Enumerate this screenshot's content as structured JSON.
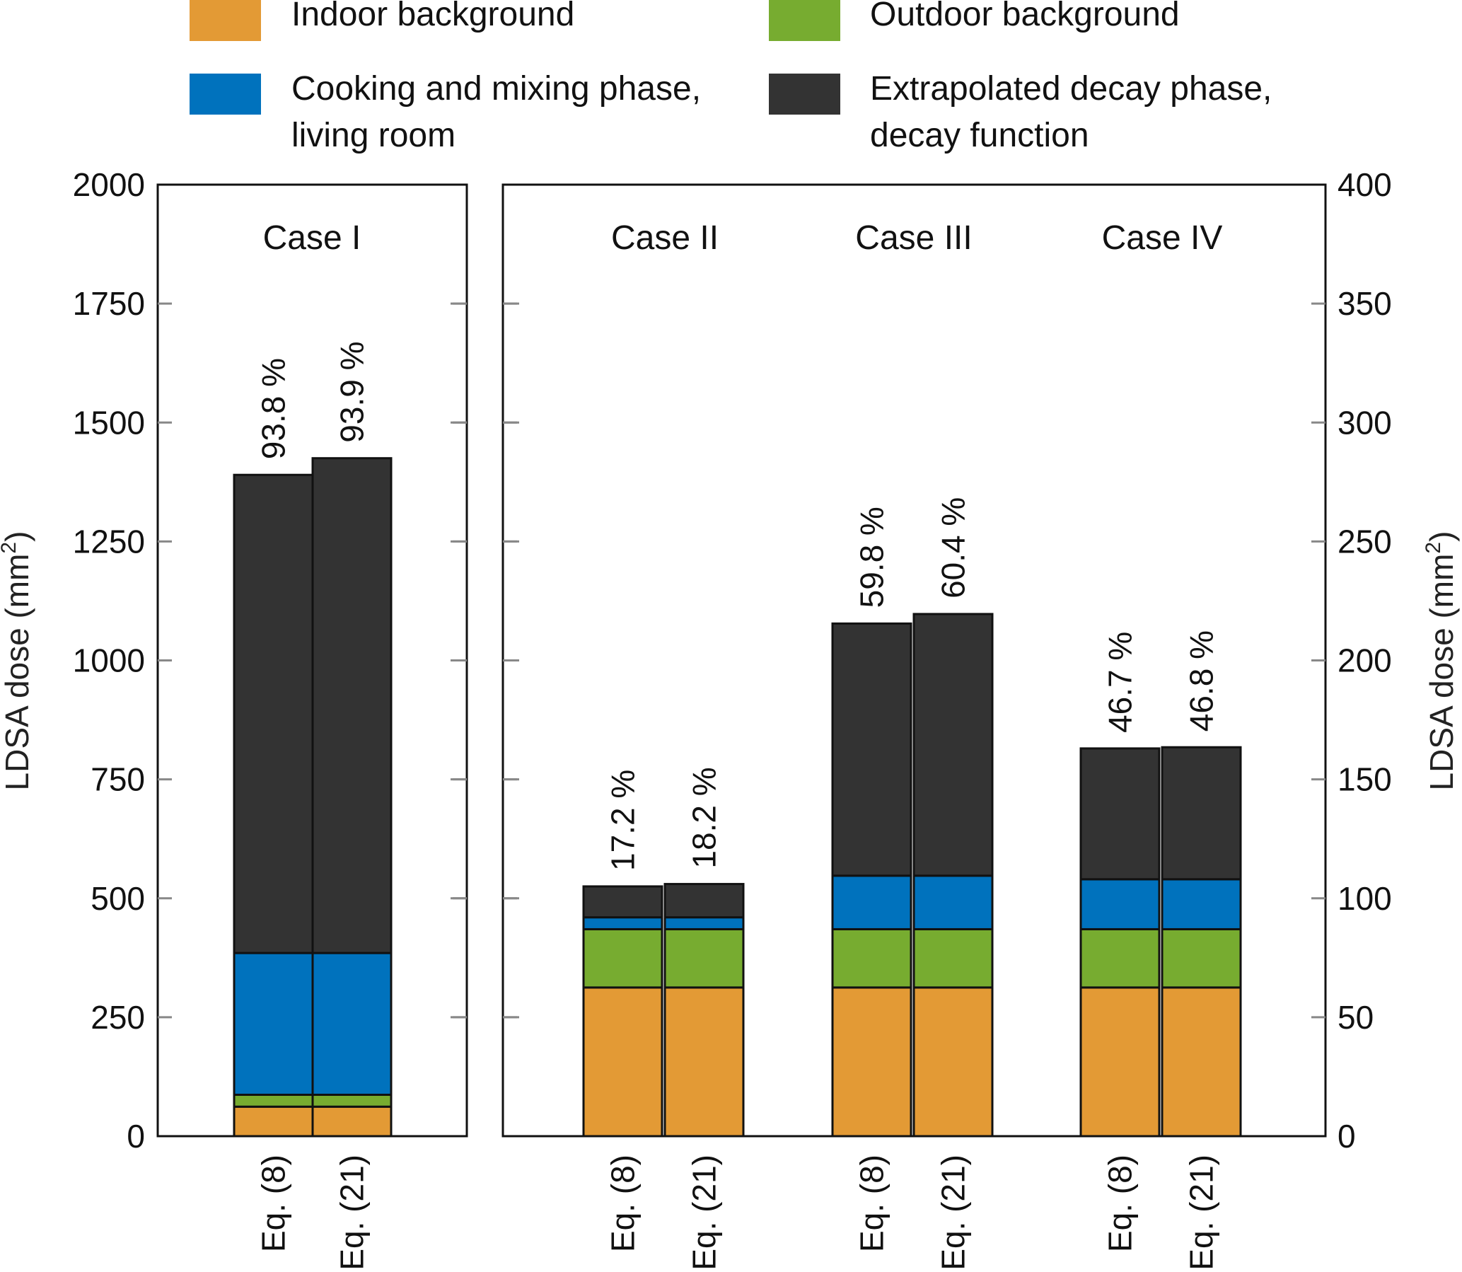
{
  "legend": [
    {
      "key": "indoor",
      "label_lines": [
        "Indoor background"
      ],
      "color": "#E39A35"
    },
    {
      "key": "outdoor",
      "label_lines": [
        "Outdoor background"
      ],
      "color": "#77AC30"
    },
    {
      "key": "cooking",
      "label_lines": [
        "Cooking and mixing phase,",
        "living room"
      ],
      "color": "#0072BD"
    },
    {
      "key": "decay",
      "label_lines": [
        "Extrapolated decay phase,",
        "decay function"
      ],
      "color": "#333333"
    }
  ],
  "chart_data": [
    {
      "type": "bar",
      "stacked": true,
      "panel": "left",
      "case": "Case I",
      "categories": [
        "Eq. (8)",
        "Eq. (21)"
      ],
      "ylabel": "LDSA dose (mm²)",
      "ylabel_parts": {
        "base": "LDSA dose (mm",
        "sup": "2",
        "end": ")"
      },
      "ylim": [
        0,
        2000
      ],
      "yticks": [
        "0",
        "250",
        "500",
        "750",
        "1000",
        "1250",
        "1500",
        "1750",
        "2000"
      ],
      "series": [
        {
          "name": "Indoor background",
          "values": [
            62,
            62
          ]
        },
        {
          "name": "Outdoor background",
          "values": [
            25,
            25
          ]
        },
        {
          "name": "Cooking and mixing phase, living room",
          "values": [
            298,
            298
          ]
        },
        {
          "name": "Extrapolated decay phase, decay function",
          "values": [
            1005,
            1040
          ]
        }
      ],
      "annotations": [
        "93.8 %",
        "93.9 %"
      ]
    },
    {
      "type": "bar",
      "stacked": true,
      "panel": "right",
      "cases": [
        "Case II",
        "Case III",
        "Case IV"
      ],
      "categories": [
        "Eq. (8)",
        "Eq. (21)",
        "Eq. (8)",
        "Eq. (21)",
        "Eq. (8)",
        "Eq. (21)"
      ],
      "ylabel": "LDSA dose (mm²)",
      "ylabel_parts": {
        "base": "LDSA dose (mm",
        "sup": "2",
        "end": ")"
      },
      "ylim": [
        0,
        400
      ],
      "yticks": [
        "0",
        "50",
        "100",
        "150",
        "200",
        "250",
        "300",
        "350",
        "400"
      ],
      "series": [
        {
          "name": "Indoor background",
          "values": [
            62.5,
            62.5,
            62.5,
            62.5,
            62.5,
            62.5
          ]
        },
        {
          "name": "Outdoor background",
          "values": [
            24.5,
            24.5,
            24.5,
            24.5,
            24.5,
            24.5
          ]
        },
        {
          "name": "Cooking and mixing phase, living room",
          "values": [
            5,
            5,
            22.5,
            22.5,
            21,
            21
          ]
        },
        {
          "name": "Extrapolated decay phase, decay function",
          "values": [
            13,
            14,
            106,
            110,
            55,
            55.5
          ]
        }
      ],
      "annotations": [
        "17.2 %",
        "18.2 %",
        "59.8 %",
        "60.4 %",
        "46.7 %",
        "46.8 %"
      ]
    }
  ]
}
